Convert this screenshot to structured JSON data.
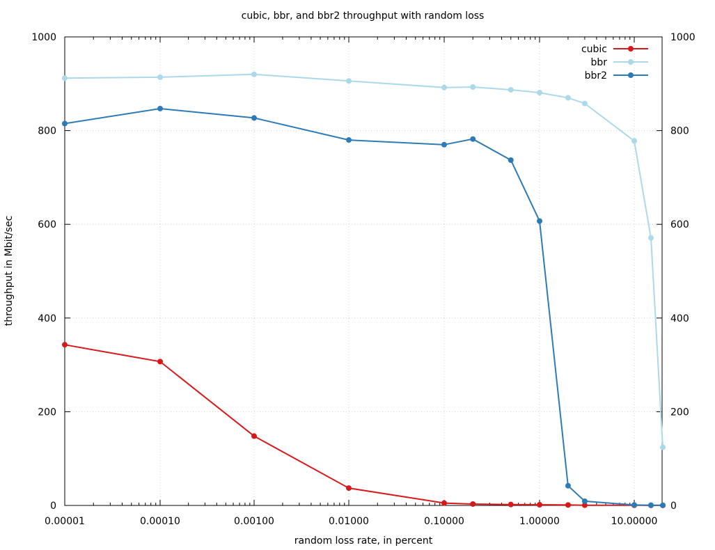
{
  "chart_data": {
    "type": "line",
    "title": "cubic, bbr, and bbr2 throughput with random loss",
    "xlabel": "random loss rate, in percent",
    "ylabel": "throughput in Mbit/sec",
    "xscale": "log",
    "xlim": [
      1e-05,
      20
    ],
    "ylim": [
      0,
      1000
    ],
    "x_ticks": [
      1e-05,
      0.0001,
      0.001,
      0.01,
      0.1,
      1,
      10
    ],
    "x_tick_labels": [
      "0.00001",
      "0.00010",
      "0.00100",
      "0.01000",
      "0.10000",
      "1.00000",
      "10.00000"
    ],
    "y_ticks": [
      0,
      200,
      400,
      600,
      800,
      1000
    ],
    "y_tick_labels": [
      "0",
      "200",
      "400",
      "600",
      "800",
      "1000"
    ],
    "grid": true,
    "mirror_right_axis": true,
    "legend_position": "top-right",
    "series": [
      {
        "name": "cubic",
        "color": "#d7191c",
        "x": [
          1e-05,
          0.0001,
          0.001,
          0.01,
          0.1,
          0.2,
          0.5,
          1,
          2,
          3,
          10,
          15,
          20
        ],
        "y": [
          343,
          307,
          148,
          37,
          5,
          3,
          2,
          1.5,
          1,
          0.5,
          0.3,
          0.2,
          0.1
        ]
      },
      {
        "name": "bbr",
        "color": "#abd9e9",
        "x": [
          1e-05,
          0.0001,
          0.001,
          0.01,
          0.1,
          0.2,
          0.5,
          1,
          2,
          3,
          10,
          15,
          20
        ],
        "y": [
          912,
          914,
          920,
          906,
          892,
          893,
          887,
          881,
          870,
          858,
          778,
          571,
          124
        ]
      },
      {
        "name": "bbr2",
        "color": "#2c7bb6",
        "x": [
          1e-05,
          0.0001,
          0.001,
          0.01,
          0.1,
          0.2,
          0.5,
          1,
          2,
          3,
          10,
          15,
          20
        ],
        "y": [
          815,
          847,
          827,
          780,
          770,
          782,
          737,
          607,
          42,
          9,
          1,
          0.5,
          0.3
        ]
      }
    ]
  }
}
